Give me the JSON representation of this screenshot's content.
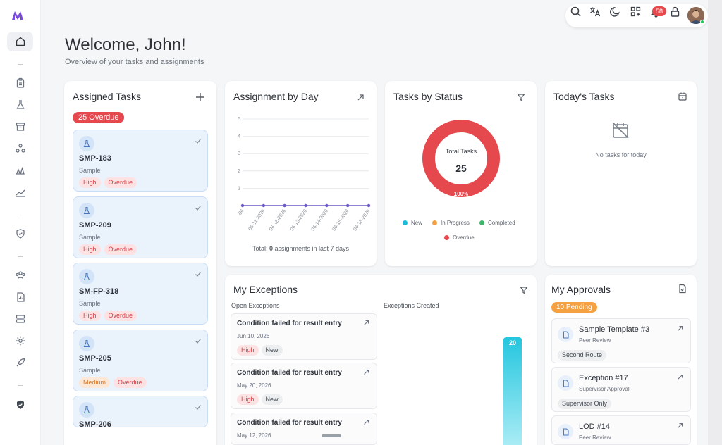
{
  "topbar": {
    "notifications_count": "58"
  },
  "header": {
    "welcome": "Welcome, John!",
    "subtitle": "Overview of your tasks and assignments"
  },
  "assigned_tasks": {
    "title": "Assigned Tasks",
    "overdue_badge": "25 Overdue",
    "items": [
      {
        "id": "SMP-183",
        "type": "Sample",
        "priority": "High",
        "status": "Overdue"
      },
      {
        "id": "SMP-209",
        "type": "Sample",
        "priority": "High",
        "status": "Overdue"
      },
      {
        "id": "SM-FP-318",
        "type": "Sample",
        "priority": "High",
        "status": "Overdue"
      },
      {
        "id": "SMP-205",
        "type": "Sample",
        "priority": "Medium",
        "status": "Overdue"
      },
      {
        "id": "SMP-206"
      }
    ]
  },
  "assignment_by_day": {
    "title": "Assignment by Day",
    "y_ticks": [
      "5",
      "4",
      "3",
      "2",
      "1"
    ],
    "dates": [
      "-06",
      "06-11-2026",
      "06-12-2026",
      "06-13-2026",
      "06-14-2026",
      "06-15-2026",
      "06-16-2026"
    ],
    "total_prefix": "Total: ",
    "total_value": "0",
    "total_suffix": " assignments in last 7 days"
  },
  "chart_data": [
    {
      "type": "line",
      "categories": [
        "-06",
        "06-11-2026",
        "06-12-2026",
        "06-13-2026",
        "06-14-2026",
        "06-15-2026",
        "06-16-2026"
      ],
      "values": [
        0,
        0,
        0,
        0,
        0,
        0,
        0
      ],
      "ylim": [
        0,
        5
      ],
      "title": "Assignment by Day"
    },
    {
      "type": "pie",
      "categories": [
        "New",
        "In Progress",
        "Completed",
        "Overdue"
      ],
      "values": [
        0,
        0,
        0,
        25
      ],
      "title": "Tasks by Status",
      "colors": [
        "#1fb9d9",
        "#f5a142",
        "#3fb86c",
        "#e5484d"
      ]
    },
    {
      "type": "bar",
      "title": "Exceptions Created",
      "values": [
        20
      ],
      "colors": [
        "#3fd0e6"
      ]
    }
  ],
  "tasks_by_status": {
    "title": "Tasks by Status",
    "center_label": "Total Tasks",
    "center_value": "25",
    "percent_label": "100%",
    "legend": [
      {
        "label": "New",
        "color": "#1fb9d9"
      },
      {
        "label": "In Progress",
        "color": "#f5a142"
      },
      {
        "label": "Completed",
        "color": "#3fb86c"
      },
      {
        "label": "Overdue",
        "color": "#e5484d"
      }
    ]
  },
  "todays_tasks": {
    "title": "Today's Tasks",
    "empty": "No tasks for today"
  },
  "my_exceptions": {
    "title": "My Exceptions",
    "open_label": "Open Exceptions",
    "created_label": "Exceptions Created",
    "bar_value": "20",
    "items": [
      {
        "title": "Condition failed for result entry",
        "date": "Jun 10, 2026",
        "priority": "High",
        "status": "New"
      },
      {
        "title": "Condition failed for result entry",
        "date": "May 20, 2026",
        "priority": "High",
        "status": "New"
      },
      {
        "title": "Condition failed for result entry",
        "date": "May 12, 2026"
      }
    ]
  },
  "my_approvals": {
    "title": "My Approvals",
    "pending_badge": "10 Pending",
    "items": [
      {
        "title": "Sample Template #3",
        "sub": "Peer Review",
        "tag": "Second Route"
      },
      {
        "title": "Exception #17",
        "sub": "Supervisor Approval",
        "tag": "Supervisor Only"
      },
      {
        "title": "LOD #14",
        "sub": "Peer Review"
      }
    ]
  }
}
